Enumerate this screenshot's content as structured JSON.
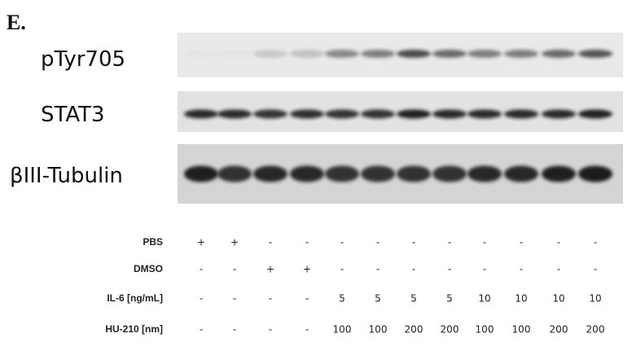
{
  "panel_label": "E.",
  "blots": [
    {
      "label": "pTyr705"
    },
    {
      "label": "STAT3"
    },
    {
      "label": "βIII-Tubulin"
    }
  ],
  "conditions": [
    {
      "label": "PBS",
      "lanes": [
        "+",
        "+",
        "-",
        "-",
        "-",
        "-",
        "-",
        "-",
        "-",
        "-",
        "-",
        "-"
      ]
    },
    {
      "label": "DMSO",
      "lanes": [
        "-",
        "-",
        "+",
        "+",
        "-",
        "-",
        "-",
        "-",
        "-",
        "-",
        "-",
        "-"
      ]
    },
    {
      "label": "IL-6 [ng/mL]",
      "lanes": [
        "-",
        "-",
        "-",
        "-",
        "5",
        "5",
        "5",
        "5",
        "10",
        "10",
        "10",
        "10"
      ]
    },
    {
      "label": "HU-210 [nm]",
      "lanes": [
        "-",
        "-",
        "-",
        "-",
        "100",
        "100",
        "200",
        "200",
        "100",
        "100",
        "200",
        "200"
      ]
    }
  ]
}
